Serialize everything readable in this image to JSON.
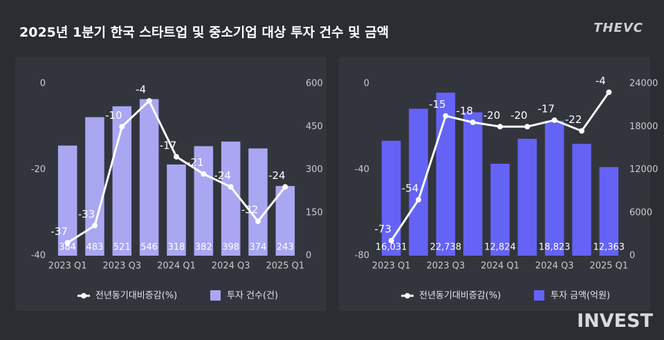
{
  "title": "2025년 1분기 한국 스타트업 및 중소기업 대상 투자 건수 및 금액",
  "logo": "THEVC",
  "watermark": "INVEST",
  "chart_data": [
    {
      "type": "combo",
      "categories": [
        "2023 Q1",
        null,
        "2023 Q3",
        null,
        "2024 Q1",
        null,
        "2024 Q3",
        null,
        "2025 Q1"
      ],
      "ylim": [
        -40,
        0
      ],
      "yticks": [
        -40,
        -20,
        0
      ],
      "y2lim": [
        0,
        600
      ],
      "y2ticks": [
        0,
        150,
        300,
        450,
        600
      ],
      "series": [
        {
          "name": "투자 건수(건)",
          "kind": "bar",
          "axis": "y2",
          "color": "#a9a7f2",
          "values": [
            384,
            483,
            521,
            546,
            318,
            382,
            398,
            374,
            243
          ]
        },
        {
          "name": "전년동기대비증감(%)",
          "kind": "line",
          "axis": "y",
          "color": "#ffffff",
          "values": [
            -37,
            -33,
            -10,
            -4,
            -17,
            -21,
            -24,
            -32,
            -24
          ]
        }
      ]
    },
    {
      "type": "combo",
      "categories": [
        "2023 Q1",
        null,
        "2023 Q3",
        null,
        "2024 Q1",
        null,
        "2024 Q3",
        null,
        "2025 Q1"
      ],
      "ylim": [
        -80,
        0
      ],
      "yticks": [
        -80,
        -40,
        0
      ],
      "y2lim": [
        0,
        24000
      ],
      "y2ticks": [
        0,
        6000,
        12000,
        18000,
        24000
      ],
      "series": [
        {
          "name": "투자 금액(억원)",
          "kind": "bar",
          "axis": "y2",
          "color": "#6463f5",
          "values": [
            16031,
            20500,
            22738,
            20000,
            12824,
            16300,
            18823,
            15600,
            12363
          ],
          "value_labels": [
            "16,031",
            null,
            "22,738",
            null,
            "12,824",
            null,
            "18,823",
            null,
            "12,363"
          ]
        },
        {
          "name": "전년동기대비증감(%)",
          "kind": "line",
          "axis": "y",
          "color": "#ffffff",
          "values": [
            -73,
            -54,
            -15,
            -18,
            -20,
            -20,
            -17,
            -22,
            -4
          ]
        }
      ]
    }
  ]
}
